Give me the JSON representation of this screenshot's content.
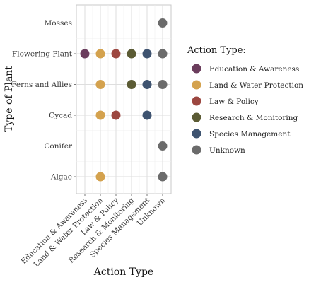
{
  "chart_data": {
    "type": "scatter",
    "xlabel": "Action Type",
    "ylabel": "Type of Plant",
    "x_categories": [
      "Education & Awareness",
      "Land & Water Protection",
      "Law & Policy",
      "Research & Monitoring",
      "Species Management",
      "Unknown"
    ],
    "y_categories": [
      "Algae",
      "Conifer",
      "Cycad",
      "Ferns and Allies",
      "Flowering Plant",
      "Mosses"
    ],
    "grid": true,
    "legend": {
      "title": "Action Type:",
      "position": "right",
      "entries": [
        {
          "label": "Education & Awareness",
          "color": "#6b3d5d"
        },
        {
          "label": "Land & Water Protection",
          "color": "#d4a24e"
        },
        {
          "label": "Law & Policy",
          "color": "#9c4740"
        },
        {
          "label": "Research & Monitoring",
          "color": "#5b5b34"
        },
        {
          "label": "Species Management",
          "color": "#3e5370"
        },
        {
          "label": "Unknown",
          "color": "#6b6b6b"
        }
      ]
    },
    "points": [
      {
        "x": "Unknown",
        "y": "Mosses"
      },
      {
        "x": "Education & Awareness",
        "y": "Flowering Plant"
      },
      {
        "x": "Land & Water Protection",
        "y": "Flowering Plant"
      },
      {
        "x": "Law & Policy",
        "y": "Flowering Plant"
      },
      {
        "x": "Research & Monitoring",
        "y": "Flowering Plant"
      },
      {
        "x": "Species Management",
        "y": "Flowering Plant"
      },
      {
        "x": "Unknown",
        "y": "Flowering Plant"
      },
      {
        "x": "Land & Water Protection",
        "y": "Ferns and Allies"
      },
      {
        "x": "Research & Monitoring",
        "y": "Ferns and Allies"
      },
      {
        "x": "Species Management",
        "y": "Ferns and Allies"
      },
      {
        "x": "Unknown",
        "y": "Ferns and Allies"
      },
      {
        "x": "Land & Water Protection",
        "y": "Cycad"
      },
      {
        "x": "Law & Policy",
        "y": "Cycad"
      },
      {
        "x": "Species Management",
        "y": "Cycad"
      },
      {
        "x": "Unknown",
        "y": "Conifer"
      },
      {
        "x": "Land & Water Protection",
        "y": "Algae"
      },
      {
        "x": "Unknown",
        "y": "Algae"
      }
    ]
  }
}
